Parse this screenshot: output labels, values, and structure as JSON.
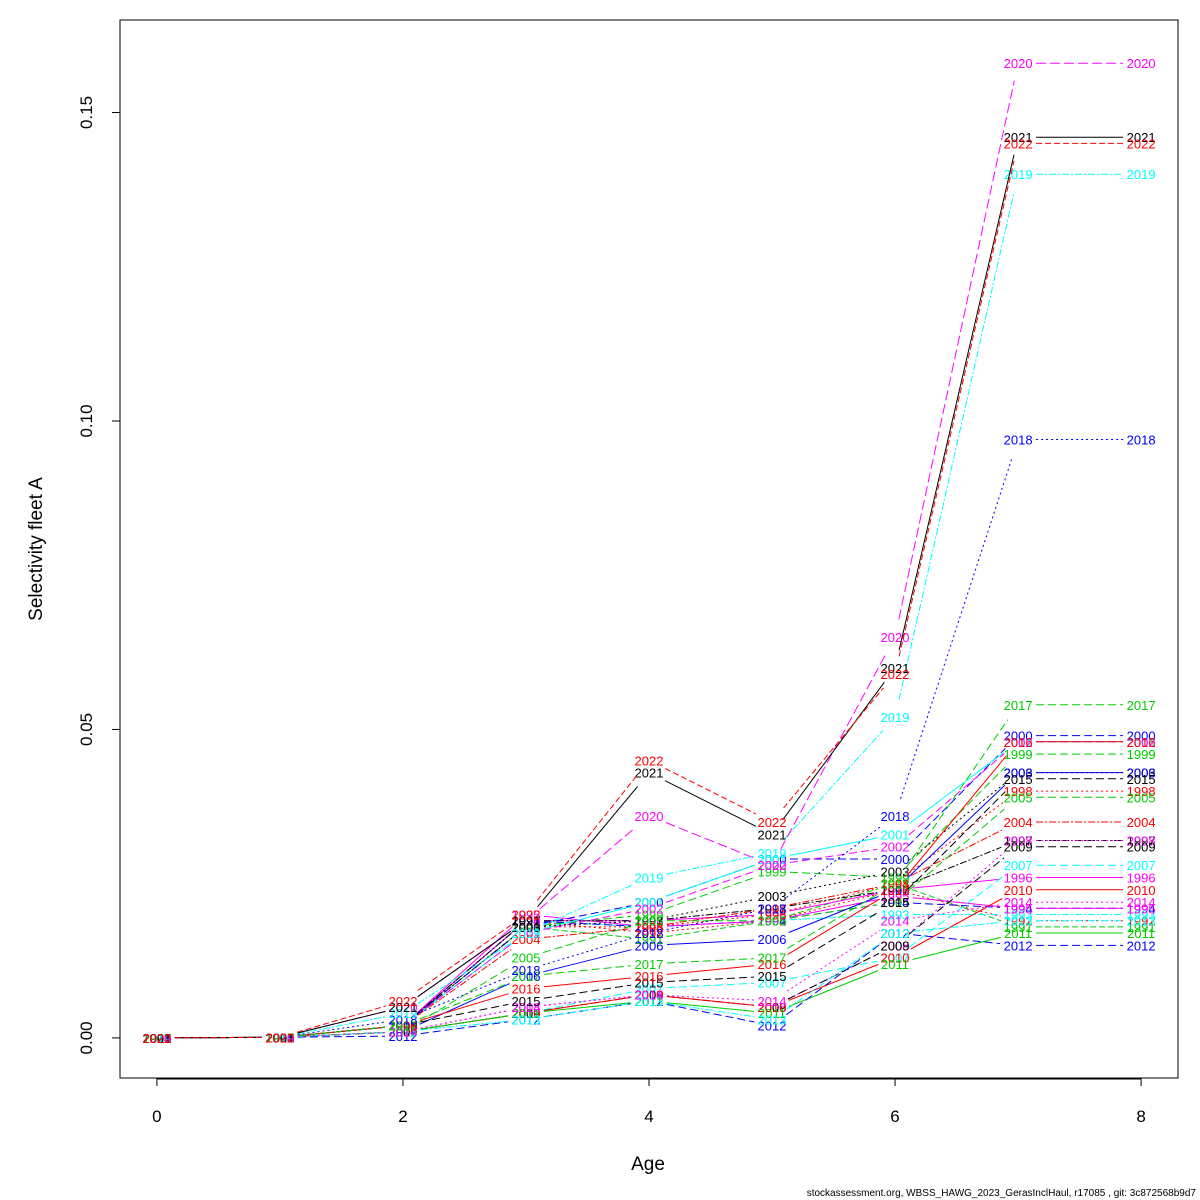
{
  "chart_data": {
    "type": "line",
    "title": "",
    "xlabel": "Age",
    "ylabel": "Selectivity fleet A",
    "xlim": [
      -0.3,
      8.3
    ],
    "ylim": [
      -0.0065,
      0.165
    ],
    "x": [
      0,
      1,
      2,
      3,
      4,
      5,
      6,
      7,
      8
    ],
    "x_ticks": [
      "0",
      "2",
      "4",
      "6",
      "8"
    ],
    "x_tick_values": [
      0,
      2,
      4,
      6,
      8
    ],
    "y_ticks": [
      "0.00",
      "0.05",
      "0.10",
      "0.15"
    ],
    "y_tick_values": [
      0,
      0.05,
      0.1,
      0.15
    ],
    "grid": false,
    "legend": "none",
    "point_labels": "series name printed at each point",
    "series": [
      {
        "name": "1991",
        "color": "#00cd00",
        "dash": "6,3",
        "values": [
          0,
          0.0001,
          0.002,
          0.018,
          0.016,
          0.019,
          0.025,
          0.018,
          0.018
        ]
      },
      {
        "name": "1992",
        "color": "#ff0000",
        "dash": "2,3",
        "values": [
          0,
          0.0001,
          0.002,
          0.019,
          0.017,
          0.019,
          0.024,
          0.019,
          0.019
        ]
      },
      {
        "name": "1993",
        "color": "#00ffff",
        "dash": "7,2,2,2",
        "values": [
          0,
          0.0001,
          0.002,
          0.019,
          0.018,
          0.019,
          0.02,
          0.02,
          0.02
        ]
      },
      {
        "name": "1994",
        "color": "#0000ff",
        "dash": "8,4",
        "values": [
          0,
          0.0001,
          0.002,
          0.019,
          0.018,
          0.019,
          0.022,
          0.021,
          0.021
        ]
      },
      {
        "name": "1995",
        "color": "#ff00ff",
        "dash": "",
        "values": [
          0,
          0.0001,
          0.002,
          0.02,
          0.018,
          0.019,
          0.023,
          0.021,
          0.021
        ]
      },
      {
        "name": "1996",
        "color": "#ff00ff",
        "dash": "",
        "values": [
          0,
          0.0001,
          0.002,
          0.019,
          0.019,
          0.02,
          0.024,
          0.026,
          0.026
        ]
      },
      {
        "name": "1997",
        "color": "#000000",
        "dash": "7,2,2,2",
        "values": [
          0,
          0.0001,
          0.002,
          0.019,
          0.019,
          0.021,
          0.024,
          0.032,
          0.032
        ]
      },
      {
        "name": "1998",
        "color": "#ff0000",
        "dash": "2,3",
        "values": [
          0,
          0.0001,
          0.002,
          0.018,
          0.018,
          0.02,
          0.025,
          0.04,
          0.04
        ]
      },
      {
        "name": "1999",
        "color": "#00cd00",
        "dash": "8,4",
        "values": [
          0,
          0.0001,
          0.002,
          0.018,
          0.02,
          0.027,
          0.026,
          0.046,
          0.046
        ]
      },
      {
        "name": "2000",
        "color": "#0000ff",
        "dash": "8,4",
        "values": [
          0,
          0.0001,
          0.002,
          0.018,
          0.022,
          0.029,
          0.029,
          0.049,
          0.049
        ]
      },
      {
        "name": "2001",
        "color": "#00ffff",
        "dash": "",
        "values": [
          0,
          0.0001,
          0.002,
          0.017,
          0.022,
          0.029,
          0.033,
          0.048,
          0.048
        ]
      },
      {
        "name": "2002",
        "color": "#ff00ff",
        "dash": "8,4",
        "values": [
          0,
          0.0001,
          0.002,
          0.017,
          0.021,
          0.028,
          0.031,
          0.048,
          0.048
        ]
      },
      {
        "name": "2003",
        "color": "#000000",
        "dash": "2,3",
        "values": [
          0,
          0.0001,
          0.002,
          0.018,
          0.019,
          0.023,
          0.027,
          0.043,
          0.043
        ]
      },
      {
        "name": "2004",
        "color": "#ff0000",
        "dash": "7,2,2,2",
        "values": [
          0,
          0.0001,
          0.002,
          0.016,
          0.018,
          0.021,
          0.025,
          0.035,
          0.035
        ]
      },
      {
        "name": "2005",
        "color": "#00cd00",
        "dash": "8,4",
        "values": [
          0,
          0.0001,
          0.001,
          0.013,
          0.019,
          0.019,
          0.022,
          0.039,
          0.039
        ]
      },
      {
        "name": "2006",
        "color": "#0000ff",
        "dash": "",
        "values": [
          0,
          0.0001,
          0.001,
          0.01,
          0.015,
          0.016,
          0.024,
          0.043,
          0.043
        ]
      },
      {
        "name": "2007",
        "color": "#00ffff",
        "dash": "8,4",
        "values": [
          0,
          0.0001,
          0.001,
          0.004,
          0.008,
          0.009,
          0.013,
          0.028,
          0.028
        ]
      },
      {
        "name": "2008",
        "color": "#ff00ff",
        "dash": "2,3",
        "values": [
          0,
          0.0001,
          0.001,
          0.005,
          0.007,
          0.005,
          0.015,
          0.032,
          0.032
        ]
      },
      {
        "name": "2009",
        "color": "#000000",
        "dash": "8,4",
        "values": [
          0,
          0.0001,
          0.001,
          0.004,
          0.007,
          0.005,
          0.015,
          0.031,
          0.031
        ]
      },
      {
        "name": "2010",
        "color": "#ff0000",
        "dash": "",
        "values": [
          0,
          0.0001,
          0.001,
          0.004,
          0.007,
          0.005,
          0.013,
          0.024,
          0.024
        ]
      },
      {
        "name": "2011",
        "color": "#00cd00",
        "dash": "",
        "values": [
          0,
          0.0001,
          0.001,
          0.004,
          0.006,
          0.004,
          0.012,
          0.017,
          0.017
        ]
      },
      {
        "name": "2012",
        "color": "#0000ff",
        "dash": "8,4",
        "values": [
          0,
          0.0001,
          0.0003,
          0.003,
          0.006,
          0.002,
          0.017,
          0.015,
          0.015
        ]
      },
      {
        "name": "2013",
        "color": "#00ffff",
        "dash": "7,2,2,2",
        "values": [
          0,
          0.0001,
          0.001,
          0.003,
          0.006,
          0.003,
          0.017,
          0.019,
          0.019
        ]
      },
      {
        "name": "2014",
        "color": "#ff00ff",
        "dash": "2,3",
        "values": [
          0,
          0.0001,
          0.001,
          0.005,
          0.007,
          0.006,
          0.019,
          0.022,
          0.022
        ]
      },
      {
        "name": "2015",
        "color": "#000000",
        "dash": "8,4",
        "values": [
          0,
          0.0001,
          0.002,
          0.006,
          0.009,
          0.01,
          0.022,
          0.042,
          0.042
        ]
      },
      {
        "name": "2016",
        "color": "#ff0000",
        "dash": "",
        "values": [
          0,
          0.0001,
          0.002,
          0.008,
          0.01,
          0.012,
          0.024,
          0.048,
          0.048
        ]
      },
      {
        "name": "2017",
        "color": "#00cd00",
        "dash": "8,4",
        "values": [
          0,
          0.0001,
          0.002,
          0.01,
          0.012,
          0.013,
          0.025,
          0.054,
          0.054
        ]
      },
      {
        "name": "2018",
        "color": "#0000ff",
        "dash": "2,3",
        "values": [
          0,
          0.0001,
          0.003,
          0.011,
          0.017,
          0.021,
          0.036,
          0.097,
          0.097
        ]
      },
      {
        "name": "2019",
        "color": "#00ffff",
        "dash": "7,2,2,2",
        "values": [
          0,
          0.0001,
          0.004,
          0.017,
          0.026,
          0.03,
          0.052,
          0.14,
          0.14
        ]
      },
      {
        "name": "2020",
        "color": "#ff00ff",
        "dash": "10,4",
        "values": [
          0,
          0.0001,
          0.005,
          0.019,
          0.036,
          0.028,
          0.065,
          0.158,
          0.158
        ]
      },
      {
        "name": "2021",
        "color": "#000000",
        "dash": "",
        "values": [
          0,
          0.0001,
          0.005,
          0.019,
          0.043,
          0.033,
          0.06,
          0.146,
          0.146
        ]
      },
      {
        "name": "2022",
        "color": "#ff0000",
        "dash": "6,3",
        "values": [
          0,
          0.0001,
          0.006,
          0.02,
          0.045,
          0.035,
          0.059,
          0.145,
          0.145
        ]
      }
    ]
  },
  "footer": {
    "credit": "stockassessment.org, WBSS_HAWG_2023_GerasInclHaul, r17085 , git: 3c872568b9d7"
  }
}
